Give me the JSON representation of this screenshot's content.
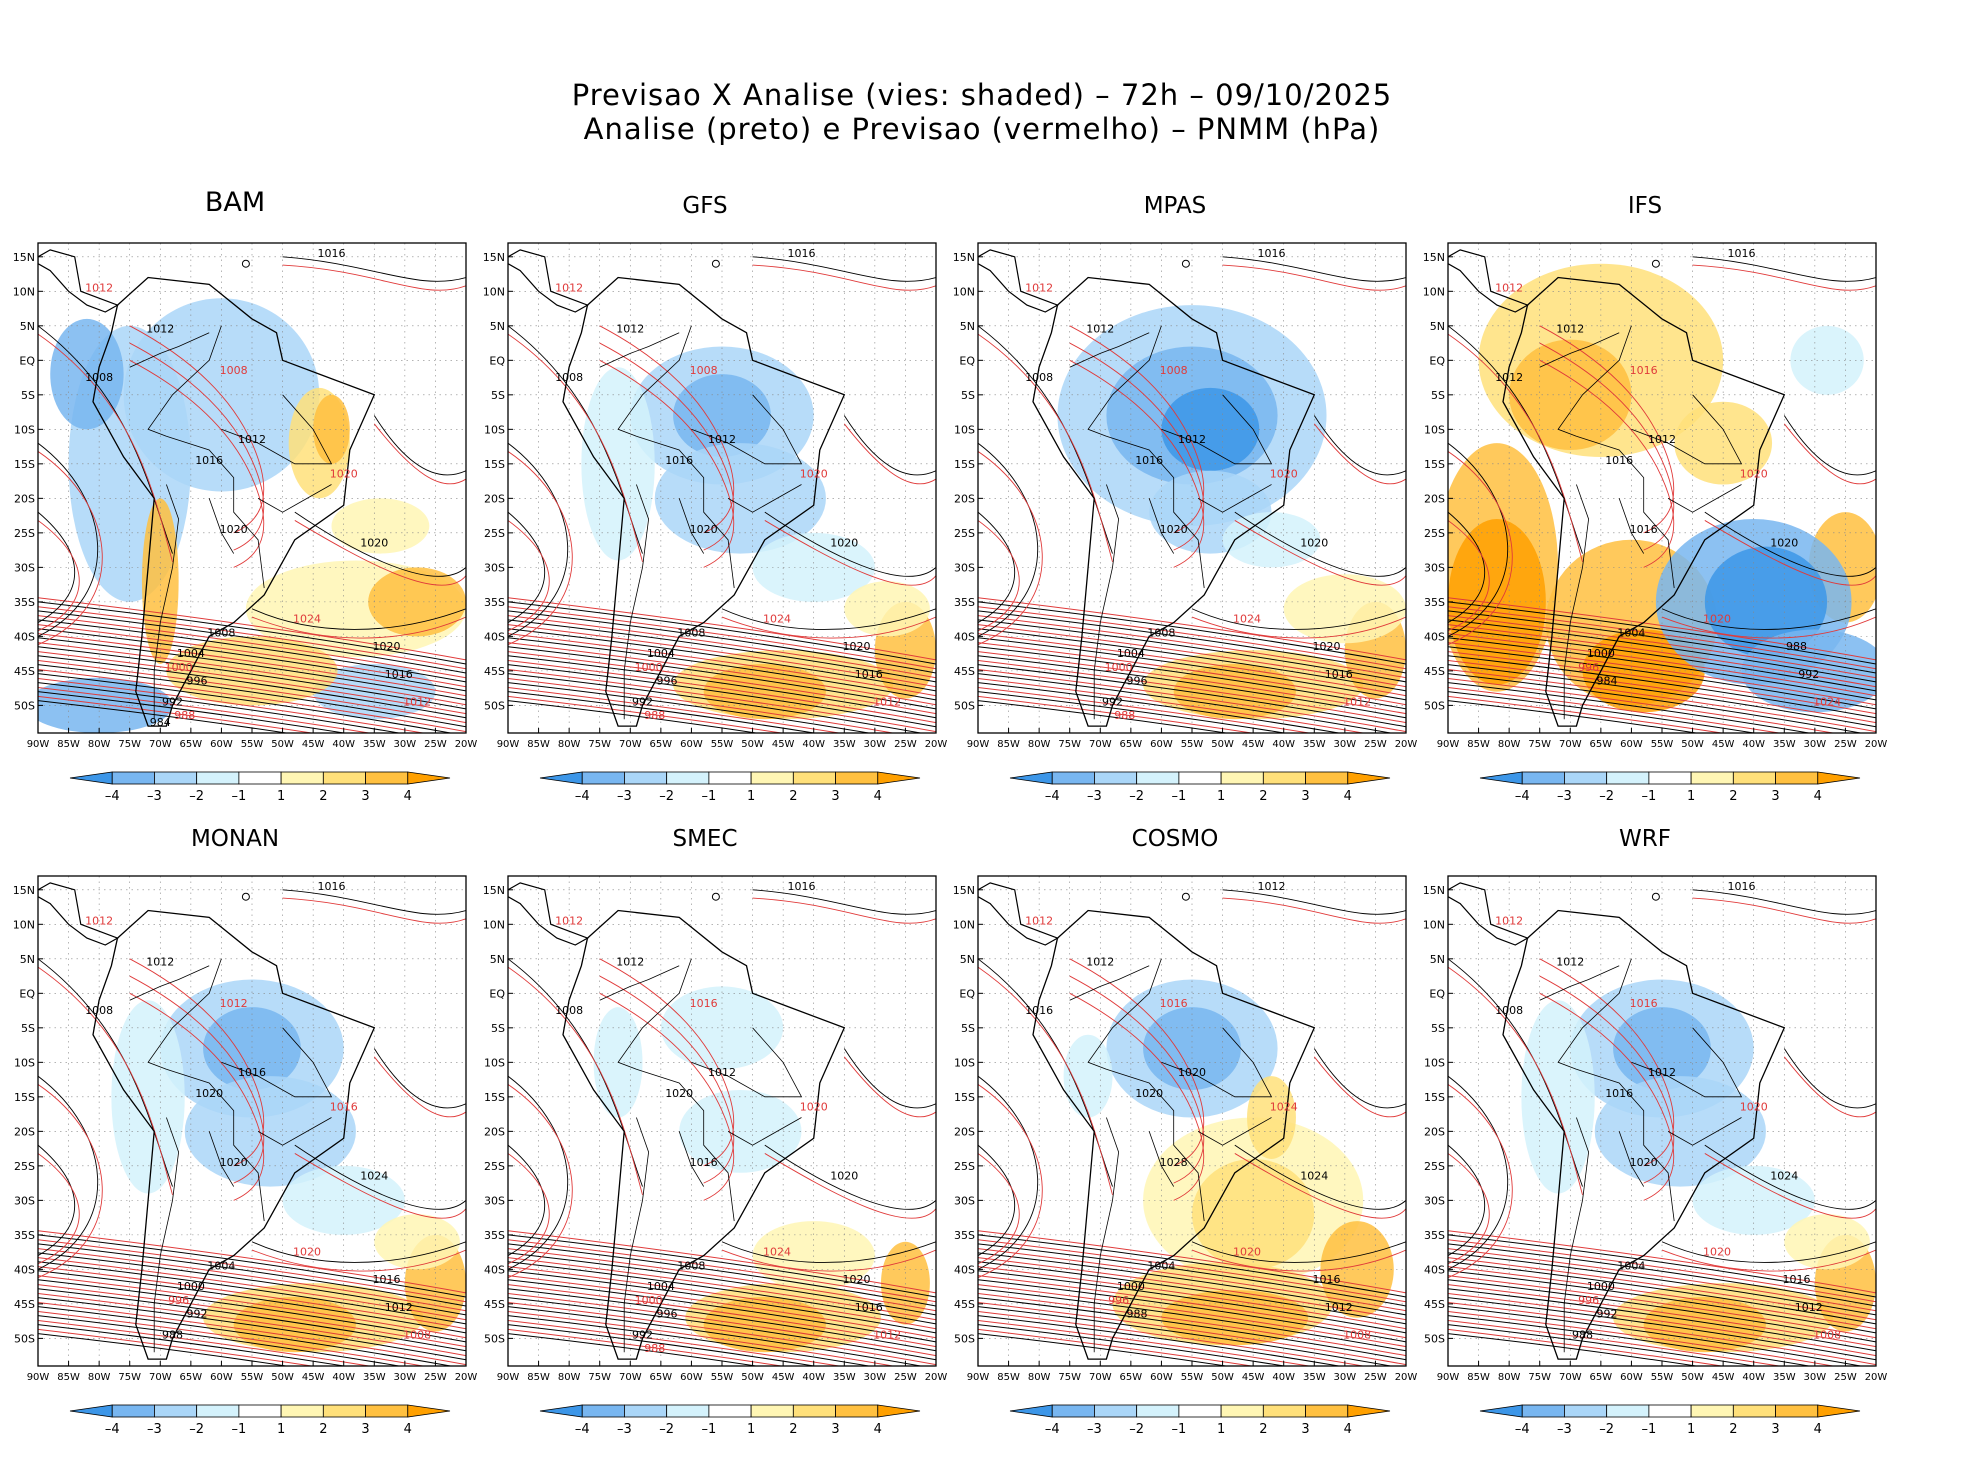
{
  "title": {
    "line1": "Previsao X Analise (vies: shaded) – 72h – 09/10/2025",
    "line2": "Analise (preto) e Previsao (vermelho) – PNMM (hPa)"
  },
  "colors": {
    "analysis_contour": "#000000",
    "forecast_contour": "#e03a3a",
    "bias_neg4": "#3c96e8",
    "bias_neg3": "#78b6f0",
    "bias_neg2": "#aad6f8",
    "bias_neg1": "#d4f2fc",
    "bias_zero": "#ffffff",
    "bias_pos1": "#fff6b4",
    "bias_pos2": "#ffe07a",
    "bias_pos3": "#ffc040",
    "bias_pos4": "#ffa000"
  },
  "colorbar": {
    "labels": [
      "-4",
      "-3",
      "-2",
      "-1",
      "1",
      "2",
      "3",
      "4"
    ]
  },
  "axes": {
    "lat_labels": [
      "15N",
      "10N",
      "5N",
      "EQ",
      "5S",
      "10S",
      "15S",
      "20S",
      "25S",
      "30S",
      "35S",
      "40S",
      "45S",
      "50S"
    ],
    "lon_labels": [
      "90W",
      "85W",
      "80W",
      "75W",
      "70W",
      "65W",
      "60W",
      "55W",
      "50W",
      "45W",
      "40W",
      "35W",
      "30W",
      "25W",
      "20W"
    ]
  },
  "panels": [
    {
      "name": "BAM",
      "bias": "mixed",
      "labels": [
        "1016",
        "1012",
        "1012",
        "1008",
        "1008",
        "1012",
        "1016",
        "1020",
        "1020",
        "1020",
        "1024",
        "1020",
        "1016",
        "1012",
        "1008",
        "1004",
        "1000",
        "996",
        "992",
        "988",
        "984"
      ]
    },
    {
      "name": "GFS",
      "bias": "neg",
      "labels": [
        "1016",
        "1012",
        "1012",
        "1008",
        "1008",
        "1012",
        "1016",
        "1020",
        "1020",
        "1020",
        "1024",
        "1020",
        "1016",
        "1012",
        "1008",
        "1004",
        "1000",
        "996",
        "992",
        "988"
      ]
    },
    {
      "name": "MPAS",
      "bias": "strongneg",
      "labels": [
        "1016",
        "1012",
        "1012",
        "1008",
        "1008",
        "1012",
        "1016",
        "1020",
        "1020",
        "1020",
        "1024",
        "1020",
        "1016",
        "1012",
        "1008",
        "1004",
        "1000",
        "996",
        "992",
        "988"
      ]
    },
    {
      "name": "IFS",
      "bias": "strongpos",
      "labels": [
        "1016",
        "1012",
        "1012",
        "1012",
        "1016",
        "1012",
        "1016",
        "1020",
        "1016",
        "1020",
        "1020",
        "988",
        "992",
        "1024",
        "1004",
        "1000",
        "996",
        "984"
      ]
    },
    {
      "name": "MONAN",
      "bias": "neg",
      "labels": [
        "1016",
        "1012",
        "1012",
        "1008",
        "1012",
        "1016",
        "1020",
        "1016",
        "1020",
        "1024",
        "1020",
        "1016",
        "1012",
        "1008",
        "1004",
        "1000",
        "996",
        "992",
        "988"
      ]
    },
    {
      "name": "SMEC",
      "bias": "weak",
      "labels": [
        "1016",
        "1012",
        "1012",
        "1008",
        "1016",
        "1012",
        "1020",
        "1020",
        "1016",
        "1020",
        "1024",
        "1020",
        "1016",
        "1012",
        "1008",
        "1004",
        "1000",
        "996",
        "992",
        "988"
      ]
    },
    {
      "name": "COSMO",
      "bias": "pos",
      "labels": [
        "1012",
        "1012",
        "1012",
        "1016",
        "1016",
        "1020",
        "1020",
        "1024",
        "1028",
        "1024",
        "1020",
        "1016",
        "1012",
        "1008",
        "1004",
        "1000",
        "996",
        "988"
      ]
    },
    {
      "name": "WRF",
      "bias": "neg",
      "labels": [
        "1016",
        "1012",
        "1012",
        "1008",
        "1016",
        "1012",
        "1016",
        "1020",
        "1020",
        "1024",
        "1020",
        "1016",
        "1012",
        "1008",
        "1004",
        "1000",
        "996",
        "992",
        "988"
      ]
    }
  ]
}
